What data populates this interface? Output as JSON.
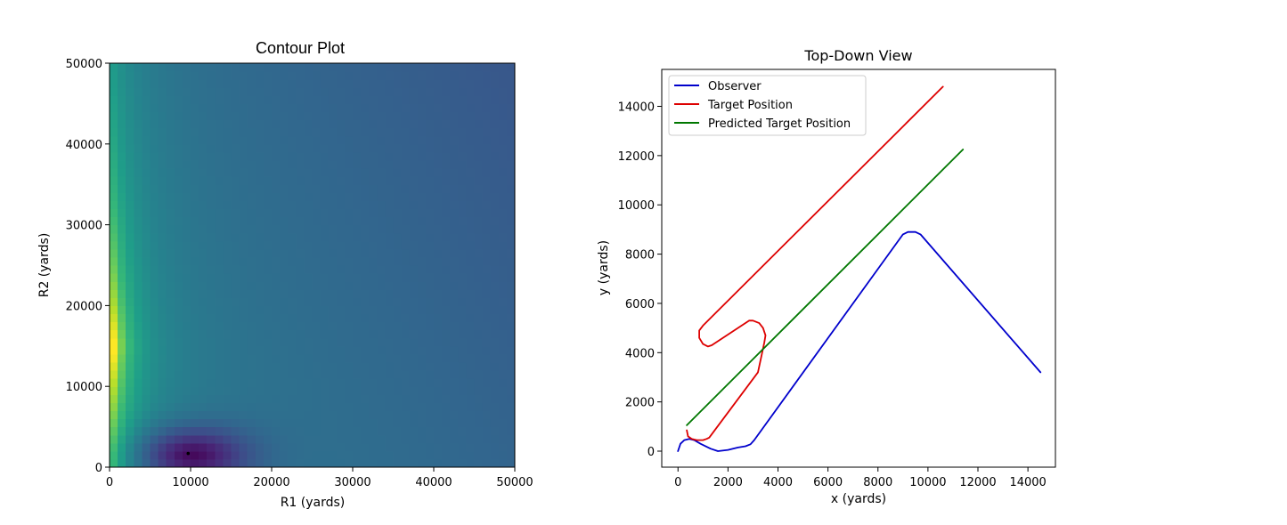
{
  "chart_data": [
    {
      "type": "heatmap",
      "title": "Contour Plot",
      "xlabel": "R1 (yards)",
      "ylabel": "R2 (yards)",
      "xlim": [
        0,
        50000
      ],
      "ylim": [
        0,
        50000
      ],
      "xticks": [
        "0",
        "10000",
        "20000",
        "30000",
        "40000",
        "50000"
      ],
      "yticks": [
        "0",
        "10000",
        "20000",
        "30000",
        "40000",
        "50000"
      ],
      "grid": false,
      "colormap": "viridis",
      "minimum_marker": {
        "x": 9700,
        "y": 1700,
        "color": "#000000"
      },
      "minimum_region_center": [
        10000,
        1500
      ]
    },
    {
      "type": "line",
      "title": "Top-Down View",
      "xlabel": "x (yards)",
      "ylabel": "y (yards)",
      "xlim": [
        -650,
        15100
      ],
      "ylim": [
        -650,
        15500
      ],
      "xticks": [
        "0",
        "2000",
        "4000",
        "6000",
        "8000",
        "10000",
        "12000",
        "14000"
      ],
      "yticks": [
        "0",
        "2000",
        "4000",
        "6000",
        "8000",
        "10000",
        "12000",
        "14000"
      ],
      "grid": false,
      "legend_position": "top-left",
      "series": [
        {
          "name": "Observer",
          "color": "#0000cc",
          "x": [
            0,
            100,
            250,
            450,
            650,
            900,
            1300,
            1600,
            2000,
            2400,
            2700,
            2900,
            3050,
            9000,
            9200,
            9500,
            9700,
            14500
          ],
          "y": [
            0,
            300,
            450,
            500,
            450,
            300,
            100,
            0,
            50,
            150,
            200,
            280,
            450,
            8800,
            8900,
            8900,
            8800,
            3200
          ]
        },
        {
          "name": "Target Position",
          "color": "#dd0000",
          "x": [
            350,
            400,
            550,
            750,
            1000,
            1150,
            1250,
            3200,
            3450,
            3500,
            3400,
            3250,
            3000,
            2850,
            1350,
            1200,
            1000,
            850,
            850,
            1000,
            10600
          ],
          "y": [
            850,
            600,
            500,
            450,
            450,
            500,
            550,
            3200,
            4400,
            4700,
            5000,
            5200,
            5300,
            5300,
            4300,
            4250,
            4350,
            4600,
            4900,
            5100,
            14800
          ]
        },
        {
          "name": "Predicted Target Position",
          "color": "#007700",
          "x": [
            350,
            11400
          ],
          "y": [
            1050,
            12250
          ]
        }
      ]
    }
  ]
}
